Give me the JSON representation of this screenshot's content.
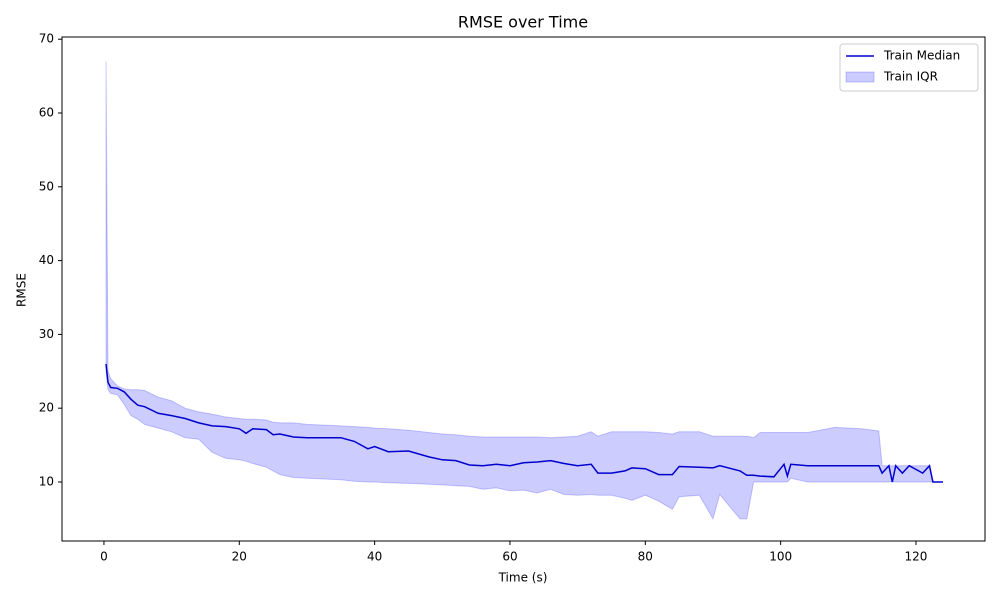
{
  "chart_data": {
    "type": "line-band",
    "title": "RMSE over Time",
    "xlabel": "Time (s)",
    "ylabel": "RMSE",
    "x": [
      0.3,
      0.6,
      1,
      2,
      3,
      4,
      5,
      6,
      8,
      10,
      12,
      14,
      16,
      18,
      20,
      21,
      22,
      24,
      25,
      26,
      28,
      30,
      35,
      37,
      39,
      40,
      42,
      45,
      48,
      50,
      52,
      54,
      56,
      58,
      60,
      62,
      64,
      66,
      68,
      70,
      72,
      73,
      75,
      77,
      78,
      80,
      82,
      84,
      85,
      88,
      90,
      91,
      94,
      95,
      96,
      97,
      99,
      100.5,
      101,
      101.5,
      104,
      108,
      112,
      114.5,
      115,
      116,
      116.5,
      117,
      118,
      119,
      121,
      122,
      122.5,
      124
    ],
    "series": [
      {
        "name": "Train Median",
        "color": "#0000cd",
        "values": [
          26,
          23.5,
          22.8,
          22.7,
          22.2,
          21.2,
          20.4,
          20.2,
          19.3,
          19,
          18.6,
          18,
          17.6,
          17.5,
          17.2,
          16.6,
          17.2,
          17.1,
          16.4,
          16.5,
          16.1,
          16,
          16,
          15.5,
          14.5,
          14.8,
          14.1,
          14.2,
          13.4,
          13,
          12.9,
          12.3,
          12.2,
          12.4,
          12.2,
          12.6,
          12.7,
          12.9,
          12.5,
          12.2,
          12.4,
          11.2,
          11.2,
          11.5,
          11.9,
          11.8,
          11,
          11,
          12.1,
          12,
          11.9,
          12.2,
          11.5,
          10.9,
          10.9,
          10.8,
          10.7,
          12.4,
          10.8,
          12.4,
          12.2,
          12.2,
          12.2,
          12.2,
          11.2,
          12.2,
          10,
          12.2,
          11.2,
          12.2,
          11.2,
          12.2,
          10,
          10
        ]
      },
      {
        "name": "Train IQR",
        "color": "#0000ff",
        "low": [
          25,
          22.5,
          22,
          21.8,
          20.5,
          19,
          18.5,
          17.8,
          17.3,
          16.8,
          16,
          15.8,
          14,
          13.2,
          13,
          12.8,
          12.5,
          12,
          11.5,
          11,
          10.6,
          10.5,
          10.3,
          10.1,
          10,
          10,
          9.9,
          9.8,
          9.7,
          9.6,
          9.5,
          9.4,
          9,
          9.2,
          8.8,
          8.9,
          8.5,
          9,
          8.3,
          8.2,
          8.3,
          8.2,
          8.2,
          7.8,
          7.5,
          8.2,
          7.4,
          6.3,
          8,
          8.2,
          5,
          8.3,
          5,
          5,
          10,
          10,
          10,
          10,
          10,
          10.5,
          10,
          10,
          10,
          10,
          10,
          10,
          10,
          10,
          10,
          10,
          10,
          10,
          10,
          10
        ],
        "high": [
          67,
          25,
          24,
          23,
          22.6,
          22.5,
          22.5,
          22.4,
          21.5,
          21,
          20,
          19.5,
          19.2,
          18.8,
          18.6,
          18.5,
          18.5,
          18.4,
          18.1,
          18,
          18,
          17.8,
          17.6,
          17.5,
          17.4,
          17.3,
          17.2,
          17,
          16.7,
          16.5,
          16.4,
          16.2,
          16.1,
          16.1,
          16.1,
          16.1,
          16.1,
          16,
          16.1,
          16.2,
          16.8,
          16.2,
          16.8,
          16.8,
          16.8,
          16.8,
          16.7,
          16.5,
          16.8,
          16.8,
          16.2,
          16.2,
          16.2,
          16.2,
          16,
          16.7,
          16.7,
          16.7,
          16.7,
          16.7,
          16.7,
          17.4,
          17.2,
          16.9,
          12.2,
          12.2,
          12.2,
          12.2,
          12.2,
          12.2,
          12.2,
          12.2,
          10,
          10
        ]
      }
    ],
    "xlim": [
      -6.2,
      130.2
    ],
    "ylim": [
      2,
      70.3
    ],
    "xticks": [
      0,
      20,
      40,
      60,
      80,
      100,
      120
    ],
    "yticks": [
      10,
      20,
      30,
      40,
      50,
      60,
      70
    ],
    "grid": false,
    "legend": "upper right"
  }
}
